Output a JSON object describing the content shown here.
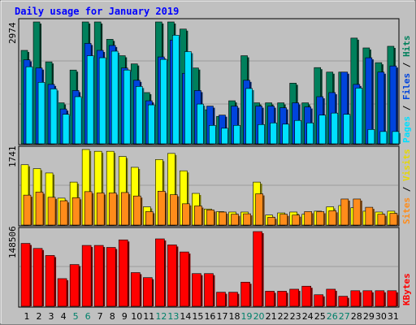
{
  "chart_data": [
    {
      "type": "bar",
      "title": "Daily usage for January 2019",
      "categories": [
        "1",
        "2",
        "3",
        "4",
        "5",
        "6",
        "7",
        "8",
        "9",
        "10",
        "11",
        "12",
        "13",
        "14",
        "15",
        "16",
        "17",
        "18",
        "19",
        "20",
        "21",
        "22",
        "23",
        "24",
        "25",
        "26",
        "27",
        "28",
        "29",
        "30",
        "31"
      ],
      "weekend_days": [
        "5",
        "6",
        "12",
        "13",
        "19",
        "20",
        "26",
        "27"
      ],
      "ymax_label": "2974",
      "ylim": [
        0,
        2974
      ],
      "legend": [
        "Pages",
        "Files",
        "Hits"
      ],
      "series": [
        {
          "name": "Hits",
          "color": "#00805c",
          "values": [
            2280,
            2974,
            2000,
            1000,
            1800,
            2974,
            2974,
            2550,
            2150,
            1950,
            1250,
            2974,
            2974,
            2800,
            1850,
            830,
            670,
            1050,
            2150,
            1000,
            1000,
            1000,
            1480,
            1000,
            1860,
            1750,
            1750,
            2580,
            2340,
            1980,
            2380
          ]
        },
        {
          "name": "Files",
          "color": "#0044dd",
          "values": [
            2050,
            1850,
            1450,
            850,
            1300,
            2450,
            2280,
            2400,
            1850,
            1550,
            1050,
            2120,
            2530,
            1720,
            1300,
            920,
            700,
            920,
            1550,
            920,
            920,
            880,
            1000,
            900,
            1150,
            1250,
            1750,
            1450,
            2100,
            1750,
            1900
          ]
        },
        {
          "name": "Pages",
          "color": "#00e0ff",
          "values": [
            1880,
            1500,
            1340,
            720,
            1150,
            2150,
            2100,
            2260,
            1800,
            1400,
            950,
            2060,
            2650,
            2250,
            970,
            450,
            380,
            450,
            1350,
            470,
            510,
            480,
            570,
            510,
            700,
            750,
            720,
            1360,
            350,
            300,
            300
          ]
        }
      ]
    },
    {
      "type": "bar",
      "ymax_label": "1741",
      "ylim": [
        0,
        1741
      ],
      "legend": [
        "Sites",
        "Visits"
      ],
      "series": [
        {
          "name": "Visits",
          "color": "#ffff00",
          "values": [
            1390,
            1300,
            1200,
            620,
            990,
            1741,
            1700,
            1700,
            1580,
            1330,
            420,
            1510,
            1650,
            1250,
            730,
            370,
            310,
            300,
            300,
            990,
            230,
            280,
            300,
            250,
            320,
            420,
            450,
            400,
            320,
            300,
            320
          ]
        },
        {
          "name": "Sites",
          "color": "#ff8c1a",
          "values": [
            690,
            760,
            640,
            560,
            630,
            770,
            740,
            740,
            750,
            670,
            310,
            780,
            700,
            490,
            440,
            350,
            300,
            250,
            260,
            720,
            180,
            250,
            230,
            310,
            310,
            330,
            600,
            600,
            410,
            250,
            270
          ]
        }
      ]
    },
    {
      "type": "bar",
      "ymax_label": "148506",
      "ylim": [
        0,
        148506
      ],
      "legend": [
        "KBytes"
      ],
      "series": [
        {
          "name": "KBytes",
          "color": "#ff0000",
          "values": [
            125000,
            115000,
            101000,
            55000,
            83000,
            121000,
            121000,
            117000,
            132000,
            67000,
            57000,
            134000,
            122000,
            108000,
            65000,
            65000,
            28000,
            28000,
            48000,
            148506,
            30000,
            30000,
            34000,
            40000,
            23000,
            34000,
            20000,
            31000,
            31000,
            31000,
            31000
          ]
        }
      ]
    }
  ]
}
